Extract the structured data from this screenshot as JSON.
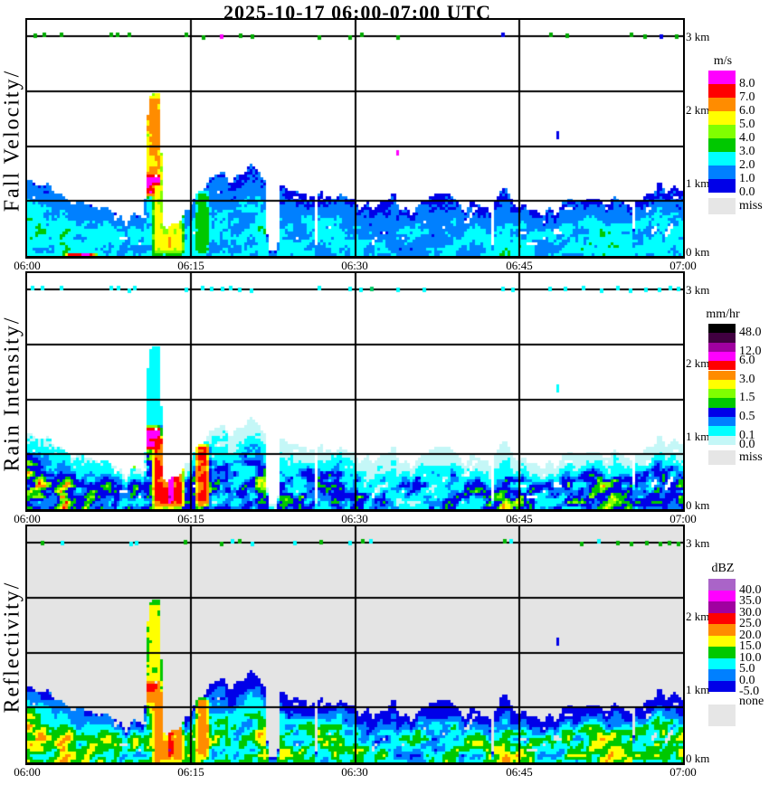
{
  "title": "2025-10-17  06:00-07:00 UTC",
  "chart_data": {
    "type": "heatmap",
    "subtype": "time-height radar profiler quicklook, three stacked panels",
    "x_axis": {
      "ticks": [
        "06:00",
        "06:15",
        "06:30",
        "06:45",
        "07:00"
      ],
      "gridlines_minutes": [
        15,
        30,
        45
      ],
      "range_minutes": [
        0,
        60
      ]
    },
    "y_axis": {
      "ticks": [
        "3 km",
        "2 km",
        "1 km",
        "0 km"
      ],
      "tick_heights_km": [
        3.0,
        2.0,
        1.0,
        0.0
      ],
      "gridline_heights_km": [
        3.0,
        2.25,
        1.5,
        0.75
      ],
      "range_km": [
        0,
        3.22
      ]
    },
    "panels": [
      {
        "id": "velocity",
        "ylabel": "Fall Velocity/",
        "bg": "#ffffff",
        "map": {
          "mode": "linear",
          "base": 0.55,
          "gain": 3.1
        },
        "scale": {
          "thresholds": [
            1,
            2,
            3,
            4,
            5,
            6,
            7,
            8
          ],
          "colors": [
            "#0000e8",
            "#0080ff",
            "#00ffff",
            "#00c800",
            "#80ff00",
            "#ffff00",
            "#ff8c00",
            "#ff0000",
            "#ff00ff"
          ]
        },
        "colorbar": {
          "unit": "m/s",
          "swatches": [
            {
              "color": "#ff00ff",
              "label": "8.0"
            },
            {
              "color": "#ff0000",
              "label": "7.0"
            },
            {
              "color": "#ff8c00",
              "label": "6.0"
            },
            {
              "color": "#ffff00",
              "label": "5.0"
            },
            {
              "color": "#80ff00",
              "label": "4.0"
            },
            {
              "color": "#00c800",
              "label": "3.0"
            },
            {
              "color": "#00ffff",
              "label": "2.0"
            },
            {
              "color": "#0080ff",
              "label": "1.0"
            },
            {
              "color": "#0000e8",
              "label": "0.0"
            }
          ],
          "missing": {
            "color": "#e6e6e6",
            "label": "miss"
          }
        },
        "dot_colors": [
          [
            "#00aa00",
            0.85
          ],
          [
            "#0000e8",
            0.95
          ],
          [
            "#ff00ff",
            1.0
          ]
        ]
      },
      {
        "id": "rain",
        "ylabel": "Rain Intensity/",
        "bg": "#ffffff",
        "map": {
          "mode": "log",
          "a": 0.03,
          "b": 2.35
        },
        "scale": {
          "thresholds": [
            0.1,
            0.3,
            0.5,
            1.0,
            1.5,
            2.2,
            3.0,
            4.2,
            6.0,
            12.0,
            24.0,
            48.0
          ],
          "colors": [
            "#c4f7f7",
            "#00ffff",
            "#0080ff",
            "#0000e8",
            "#00c800",
            "#80ff00",
            "#ffff00",
            "#ff8c00",
            "#ff0000",
            "#ff00ff",
            "#a000a0",
            "#400040",
            "#000000"
          ]
        },
        "colorbar": {
          "unit": "mm/hr",
          "swatches": [
            {
              "color": "#000000",
              "label": "48.0"
            },
            {
              "color": "#400040",
              "label": null
            },
            {
              "color": "#a000a0",
              "label": "12.0"
            },
            {
              "color": "#ff00ff",
              "label": "6.0"
            },
            {
              "color": "#ff0000",
              "label": null
            },
            {
              "color": "#ff8c00",
              "label": "3.0"
            },
            {
              "color": "#ffff00",
              "label": null
            },
            {
              "color": "#80ff00",
              "label": "1.5"
            },
            {
              "color": "#00c800",
              "label": null
            },
            {
              "color": "#0000e8",
              "label": "0.5"
            },
            {
              "color": "#0080ff",
              "label": null
            },
            {
              "color": "#00ffff",
              "label": "0.1"
            },
            {
              "color": "#c4f7f7",
              "label": "0.0"
            }
          ],
          "missing": {
            "color": "#e6e6e6",
            "label": "miss"
          }
        },
        "dot_colors": [
          [
            "#00ffff",
            0.92
          ],
          [
            "#00c864",
            1.0
          ]
        ]
      },
      {
        "id": "dbz",
        "ylabel": "Reflectivity/",
        "bg": "#e4e4e4",
        "map": {
          "mode": "linear",
          "base": -7,
          "gain": 34
        },
        "scale": {
          "thresholds": [
            -5,
            0,
            5,
            10,
            15,
            20,
            25,
            30,
            35,
            40
          ],
          "colors": [
            "#e4e4e4",
            "#0000e8",
            "#0080ff",
            "#00ffff",
            "#00c800",
            "#ffff00",
            "#ff8c00",
            "#ff0000",
            "#a000a0",
            "#ff00ff",
            "#aa64c8"
          ]
        },
        "colorbar": {
          "unit": "dBZ",
          "swatches": [
            {
              "color": "#aa64c8",
              "label": "40.0"
            },
            {
              "color": "#ff00ff",
              "label": "35.0"
            },
            {
              "color": "#a000a0",
              "label": "30.0"
            },
            {
              "color": "#ff0000",
              "label": "25.0"
            },
            {
              "color": "#ff8c00",
              "label": "20.0"
            },
            {
              "color": "#ffff00",
              "label": "15.0"
            },
            {
              "color": "#00c800",
              "label": "10.0"
            },
            {
              "color": "#00ffff",
              "label": "5.0"
            },
            {
              "color": "#0080ff",
              "label": "0.0"
            },
            {
              "color": "#0000e8",
              "label": "-5.0"
            }
          ],
          "missing": {
            "color": "#e6e6e6",
            "label": "none"
          }
        },
        "dot_colors": [
          [
            "#00ffff",
            0.55
          ],
          [
            "#00b400",
            1.0
          ]
        ]
      }
    ],
    "features": [
      {
        "name": "updraft-plume",
        "t": [
          10.6,
          12.6
        ],
        "h": [
          0.95,
          2.38
        ],
        "plume": true,
        "v": {
          "velocity": 6.3,
          "rain": 0.14,
          "dbz": 16
        }
      },
      {
        "name": "velocity-core",
        "t": [
          9.6,
          12.4
        ],
        "h": [
          0.78,
          1.16
        ],
        "v": {
          "velocity": 8.7,
          "rain": 7.5,
          "dbz": 26
        }
      },
      {
        "name": "rain-core",
        "t": [
          8.6,
          10.8
        ],
        "h": [
          0.55,
          1.05
        ],
        "v": {
          "rain": 9.0,
          "dbz": 26
        }
      },
      {
        "name": "heavy-column-1",
        "t": [
          11.3,
          14.5
        ],
        "h": [
          0.0,
          1.02
        ],
        "v": {
          "velocity": 5.5,
          "rain": 4.6,
          "dbz": 23
        }
      },
      {
        "name": "purple-streak",
        "t": [
          12.7,
          13.5
        ],
        "h": [
          0.05,
          0.95
        ],
        "v": {
          "velocity": 6.2,
          "rain": 13.5,
          "dbz": 31.5
        }
      },
      {
        "name": "heavy-column-2",
        "t": [
          15.2,
          16.8
        ],
        "h": [
          0.0,
          0.92
        ],
        "v": {
          "velocity": 3.6,
          "rain": 4.4,
          "dbz": 22
        }
      },
      {
        "name": "ground-streak",
        "t": [
          3.4,
          6.5
        ],
        "h": [
          0.0,
          0.05
        ],
        "v": {
          "velocity": 8.6
        }
      },
      {
        "name": "drizzle-veil",
        "t": [
          15.8,
          29.2
        ],
        "h": [
          0.0,
          0.78
        ],
        "veil": true,
        "v": {
          "rain": 0.05
        }
      },
      {
        "name": "speck-a",
        "t": [
          33.6,
          33.9
        ],
        "h": [
          1.36,
          1.46
        ],
        "speck": true,
        "v": {
          "velocity": 8.6
        }
      },
      {
        "name": "speck-b",
        "t": [
          48.3,
          48.6
        ],
        "h": [
          1.58,
          1.7
        ],
        "speck": true,
        "v": {
          "velocity": 0.5,
          "rain": 0.2,
          "dbz": -2.5
        }
      }
    ],
    "gaps": [
      [
        21.7,
        23.2
      ],
      [
        26.1,
        26.7
      ],
      [
        42.2,
        42.8
      ],
      [
        55.1,
        55.6
      ]
    ],
    "dot_times": [
      0.6,
      1.5,
      3.2,
      7.7,
      8.3,
      9.4,
      9.9,
      14.6,
      16.1,
      17.0,
      17.8,
      18.7,
      19.5,
      20.6,
      24.4,
      26.8,
      29.5,
      30.6,
      31.5,
      33.9,
      36.2,
      43.6,
      44.4,
      47.8,
      49.3,
      50.8,
      52.4,
      54.1,
      55.3,
      56.6,
      57.9,
      58.8,
      59.5
    ]
  }
}
